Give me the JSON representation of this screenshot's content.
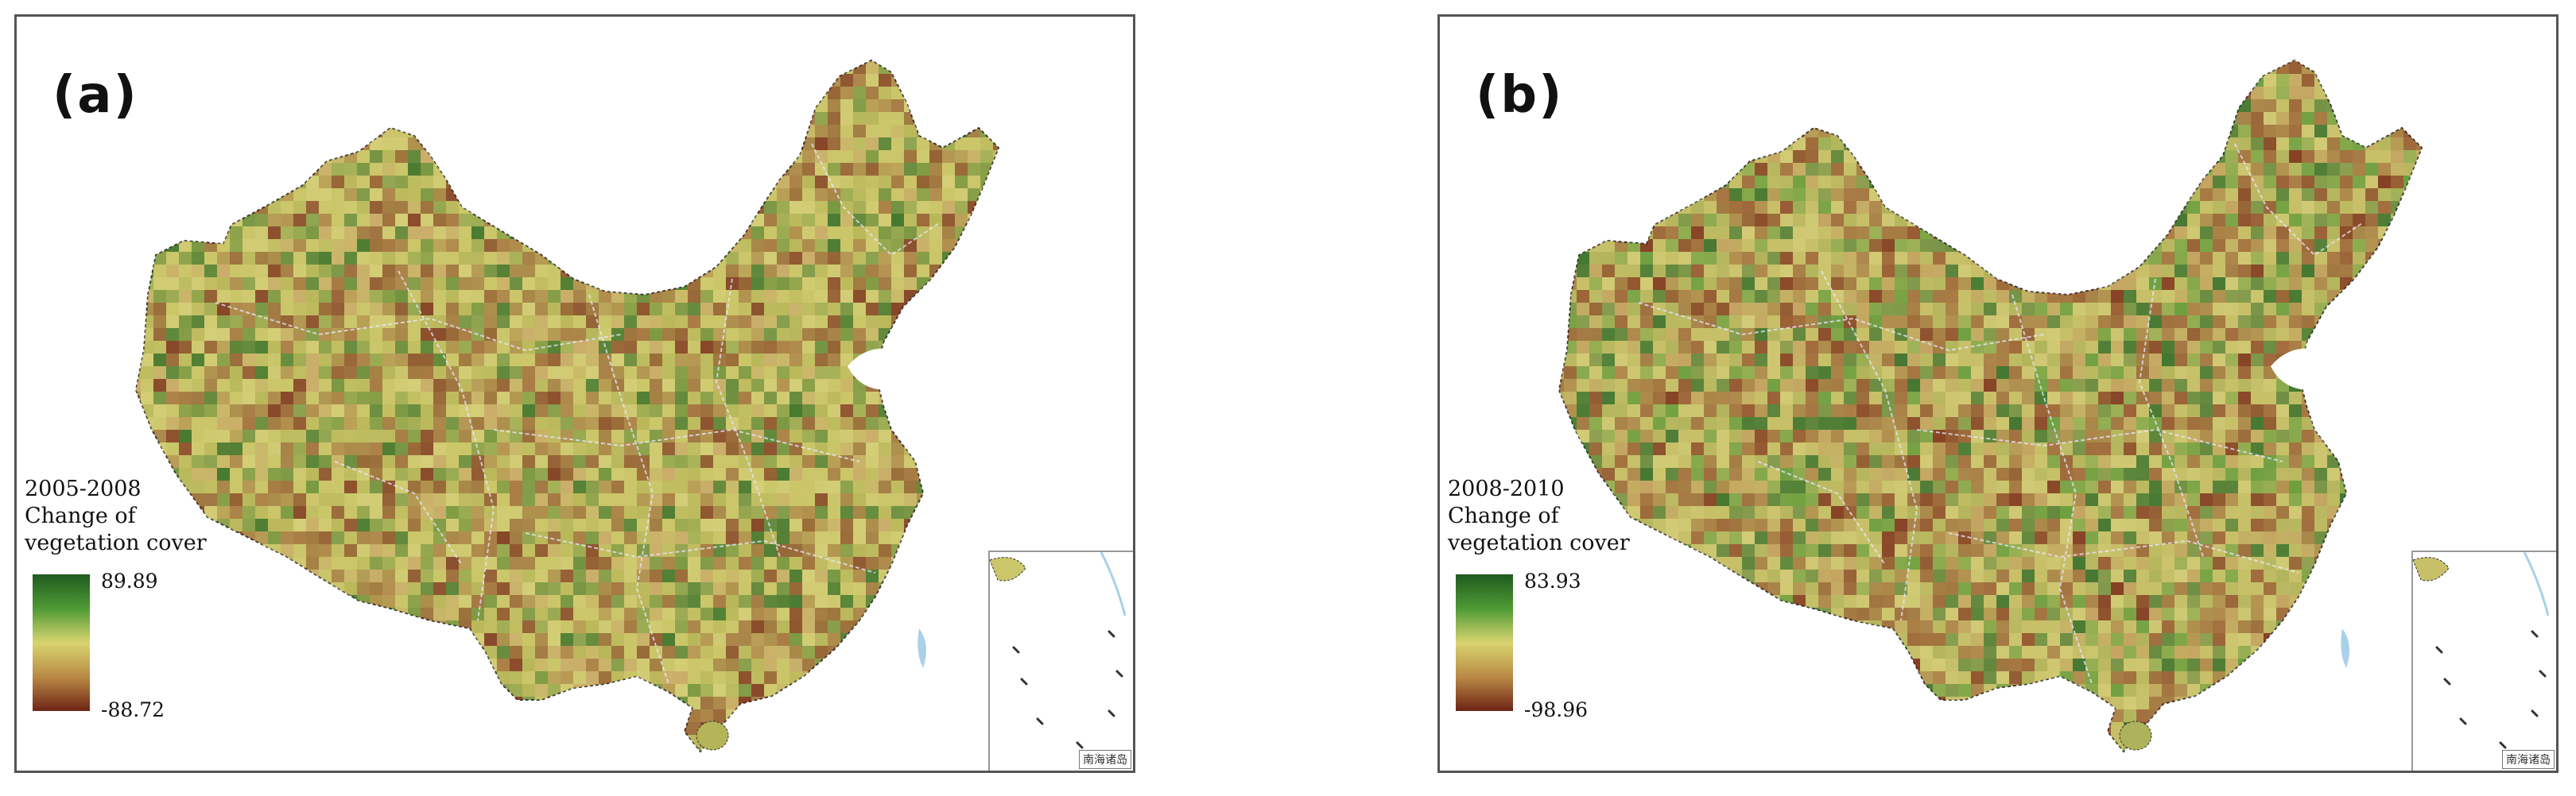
{
  "panels": [
    {
      "id": "a",
      "label": "(a)",
      "legend": {
        "period": "2005-2008",
        "title_line2": "Change of",
        "title_line3": "vegetation cover",
        "max": "89.89",
        "min": "-88.72"
      },
      "inset_label": "南海诸岛",
      "tones": [
        "#cbc66a",
        "#b5b458",
        "#c9a86a",
        "#a06a3c",
        "#6b8f3a",
        "#2f6b25",
        "#d5cf7a",
        "#8a4f2a",
        "#7a2e1c"
      ]
    },
    {
      "id": "b",
      "label": "(b)",
      "legend": {
        "period": "2008-2010",
        "title_line2": "Change of",
        "title_line3": "vegetation cover",
        "max": "83.93",
        "min": "-98.96"
      },
      "inset_label": "南海诸岛",
      "tones": [
        "#c7c069",
        "#aeb25a",
        "#c39f60",
        "#9a5d34",
        "#5f9a3a",
        "#2d6a27",
        "#d4cc78",
        "#8f4a2a",
        "#7a2a18"
      ]
    }
  ],
  "colors": {
    "legend_high": "#1f5a1f",
    "legend_mid": "#d8d470",
    "legend_low": "#6e2415",
    "border": "#555555",
    "sea_blue": "#a9d1e8"
  }
}
